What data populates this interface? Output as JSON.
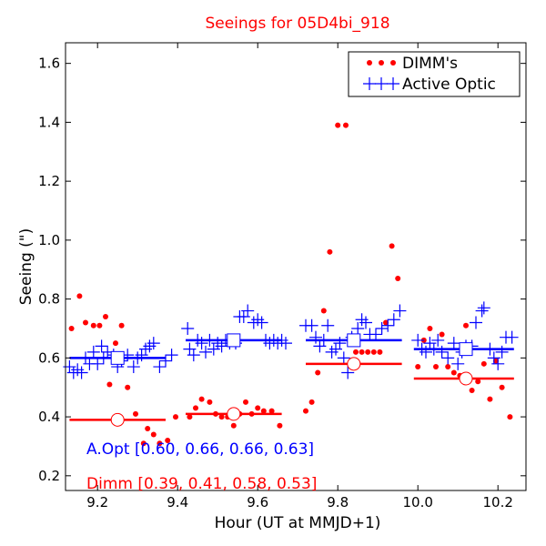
{
  "chart_data": {
    "type": "scatter",
    "title": "Seeings for 05D4bi_918",
    "xlabel": "Hour (UT at MMJD+1)",
    "ylabel": "Seeing (\")",
    "xlim": [
      9.12,
      10.27
    ],
    "ylim": [
      0.15,
      1.67
    ],
    "xticks": [
      "9.2",
      "9.4",
      "9.6",
      "9.8",
      "10.0",
      "10.2"
    ],
    "yticks": [
      "0.2",
      "0.4",
      "0.6",
      "0.8",
      "1.0",
      "1.2",
      "1.4",
      "1.6"
    ],
    "legend": {
      "position": "top-right",
      "entries": [
        {
          "label": "DIMM's",
          "color": "#ff0000",
          "marker": "dot"
        },
        {
          "label": "Active Optic",
          "color": "#0000ff",
          "marker": "plus"
        }
      ]
    },
    "series": [
      {
        "name": "DIMM's",
        "color": "#ff0000",
        "marker": "dot",
        "points": [
          [
            9.135,
            0.7
          ],
          [
            9.155,
            0.81
          ],
          [
            9.17,
            0.72
          ],
          [
            9.19,
            0.71
          ],
          [
            9.205,
            0.71
          ],
          [
            9.22,
            0.74
          ],
          [
            9.23,
            0.51
          ],
          [
            9.245,
            0.65
          ],
          [
            9.26,
            0.71
          ],
          [
            9.275,
            0.5
          ],
          [
            9.295,
            0.41
          ],
          [
            9.315,
            0.31
          ],
          [
            9.325,
            0.36
          ],
          [
            9.34,
            0.34
          ],
          [
            9.355,
            0.31
          ],
          [
            9.375,
            0.32
          ],
          [
            9.395,
            0.4
          ],
          [
            9.43,
            0.4
          ],
          [
            9.445,
            0.43
          ],
          [
            9.46,
            0.46
          ],
          [
            9.48,
            0.45
          ],
          [
            9.495,
            0.41
          ],
          [
            9.51,
            0.4
          ],
          [
            9.525,
            0.4
          ],
          [
            9.54,
            0.37
          ],
          [
            9.555,
            0.41
          ],
          [
            9.57,
            0.45
          ],
          [
            9.585,
            0.41
          ],
          [
            9.6,
            0.43
          ],
          [
            9.615,
            0.42
          ],
          [
            9.635,
            0.42
          ],
          [
            9.655,
            0.37
          ],
          [
            9.72,
            0.42
          ],
          [
            9.735,
            0.45
          ],
          [
            9.75,
            0.55
          ],
          [
            9.765,
            0.76
          ],
          [
            9.78,
            0.96
          ],
          [
            9.8,
            1.39
          ],
          [
            9.82,
            1.39
          ],
          [
            9.845,
            0.62
          ],
          [
            9.86,
            0.62
          ],
          [
            9.875,
            0.62
          ],
          [
            9.89,
            0.62
          ],
          [
            9.905,
            0.62
          ],
          [
            9.92,
            0.72
          ],
          [
            9.935,
            0.98
          ],
          [
            9.95,
            0.87
          ],
          [
            10.0,
            0.57
          ],
          [
            10.015,
            0.66
          ],
          [
            10.03,
            0.7
          ],
          [
            10.045,
            0.57
          ],
          [
            10.06,
            0.68
          ],
          [
            10.075,
            0.57
          ],
          [
            10.09,
            0.55
          ],
          [
            10.105,
            0.54
          ],
          [
            10.12,
            0.71
          ],
          [
            10.135,
            0.49
          ],
          [
            10.15,
            0.52
          ],
          [
            10.165,
            0.58
          ],
          [
            10.18,
            0.46
          ],
          [
            10.195,
            0.59
          ],
          [
            10.21,
            0.5
          ],
          [
            10.23,
            0.4
          ]
        ]
      },
      {
        "name": "Active Optic",
        "color": "#0000ff",
        "marker": "plus",
        "points": [
          [
            9.13,
            0.57
          ],
          [
            9.14,
            0.55
          ],
          [
            9.15,
            0.56
          ],
          [
            9.16,
            0.55
          ],
          [
            9.17,
            0.6
          ],
          [
            9.18,
            0.58
          ],
          [
            9.19,
            0.62
          ],
          [
            9.2,
            0.58
          ],
          [
            9.21,
            0.64
          ],
          [
            9.215,
            0.6
          ],
          [
            9.225,
            0.62
          ],
          [
            9.24,
            0.61
          ],
          [
            9.25,
            0.57
          ],
          [
            9.26,
            0.59
          ],
          [
            9.275,
            0.61
          ],
          [
            9.29,
            0.57
          ],
          [
            9.3,
            0.6
          ],
          [
            9.31,
            0.61
          ],
          [
            9.32,
            0.63
          ],
          [
            9.33,
            0.64
          ],
          [
            9.34,
            0.65
          ],
          [
            9.355,
            0.57
          ],
          [
            9.37,
            0.59
          ],
          [
            9.385,
            0.61
          ],
          [
            9.425,
            0.7
          ],
          [
            9.43,
            0.63
          ],
          [
            9.44,
            0.61
          ],
          [
            9.45,
            0.66
          ],
          [
            9.46,
            0.65
          ],
          [
            9.47,
            0.62
          ],
          [
            9.48,
            0.66
          ],
          [
            9.49,
            0.63
          ],
          [
            9.5,
            0.65
          ],
          [
            9.51,
            0.64
          ],
          [
            9.52,
            0.66
          ],
          [
            9.53,
            0.65
          ],
          [
            9.545,
            0.65
          ],
          [
            9.555,
            0.74
          ],
          [
            9.565,
            0.74
          ],
          [
            9.575,
            0.76
          ],
          [
            9.59,
            0.72
          ],
          [
            9.6,
            0.73
          ],
          [
            9.61,
            0.72
          ],
          [
            9.62,
            0.66
          ],
          [
            9.63,
            0.65
          ],
          [
            9.64,
            0.66
          ],
          [
            9.65,
            0.65
          ],
          [
            9.66,
            0.66
          ],
          [
            9.67,
            0.65
          ],
          [
            9.72,
            0.71
          ],
          [
            9.735,
            0.71
          ],
          [
            9.745,
            0.67
          ],
          [
            9.755,
            0.64
          ],
          [
            9.765,
            0.66
          ],
          [
            9.775,
            0.71
          ],
          [
            9.785,
            0.62
          ],
          [
            9.795,
            0.63
          ],
          [
            9.805,
            0.65
          ],
          [
            9.815,
            0.6
          ],
          [
            9.825,
            0.55
          ],
          [
            9.835,
            0.67
          ],
          [
            9.85,
            0.7
          ],
          [
            9.86,
            0.73
          ],
          [
            9.87,
            0.72
          ],
          [
            9.88,
            0.68
          ],
          [
            9.895,
            0.68
          ],
          [
            9.91,
            0.7
          ],
          [
            9.925,
            0.71
          ],
          [
            9.94,
            0.73
          ],
          [
            9.955,
            0.76
          ],
          [
            10.0,
            0.66
          ],
          [
            10.01,
            0.63
          ],
          [
            10.02,
            0.62
          ],
          [
            10.03,
            0.65
          ],
          [
            10.04,
            0.63
          ],
          [
            10.05,
            0.66
          ],
          [
            10.06,
            0.62
          ],
          [
            10.075,
            0.6
          ],
          [
            10.09,
            0.65
          ],
          [
            10.1,
            0.58
          ],
          [
            10.11,
            0.62
          ],
          [
            10.12,
            0.64
          ],
          [
            10.135,
            0.64
          ],
          [
            10.145,
            0.72
          ],
          [
            10.16,
            0.76
          ],
          [
            10.165,
            0.77
          ],
          [
            10.18,
            0.63
          ],
          [
            10.19,
            0.6
          ],
          [
            10.2,
            0.58
          ],
          [
            10.21,
            0.62
          ],
          [
            10.22,
            0.67
          ],
          [
            10.235,
            0.67
          ]
        ]
      }
    ],
    "means": {
      "dimm": {
        "color": "#ff0000",
        "segments": [
          {
            "x": [
              9.13,
              9.37
            ],
            "y": 0.39,
            "xc": 9.25
          },
          {
            "x": [
              9.42,
              9.66
            ],
            "y": 0.41,
            "xc": 9.54
          },
          {
            "x": [
              9.72,
              9.96
            ],
            "y": 0.58,
            "xc": 9.84
          },
          {
            "x": [
              9.99,
              10.24
            ],
            "y": 0.53,
            "xc": 10.12
          }
        ]
      },
      "aopt": {
        "color": "#0000ff",
        "segments": [
          {
            "x": [
              9.13,
              9.37
            ],
            "y": 0.6,
            "xc": 9.25
          },
          {
            "x": [
              9.42,
              9.66
            ],
            "y": 0.66,
            "xc": 9.54
          },
          {
            "x": [
              9.72,
              9.96
            ],
            "y": 0.66,
            "xc": 9.84
          },
          {
            "x": [
              9.99,
              10.24
            ],
            "y": 0.63,
            "xc": 10.12
          }
        ]
      }
    },
    "annotations": [
      {
        "text": "A.Opt [0.60, 0.66, 0.66, 0.63]",
        "color": "#0000ff"
      },
      {
        "text": "Dimm [0.39, 0.41, 0.58, 0.53]",
        "color": "#ff0000"
      }
    ]
  }
}
